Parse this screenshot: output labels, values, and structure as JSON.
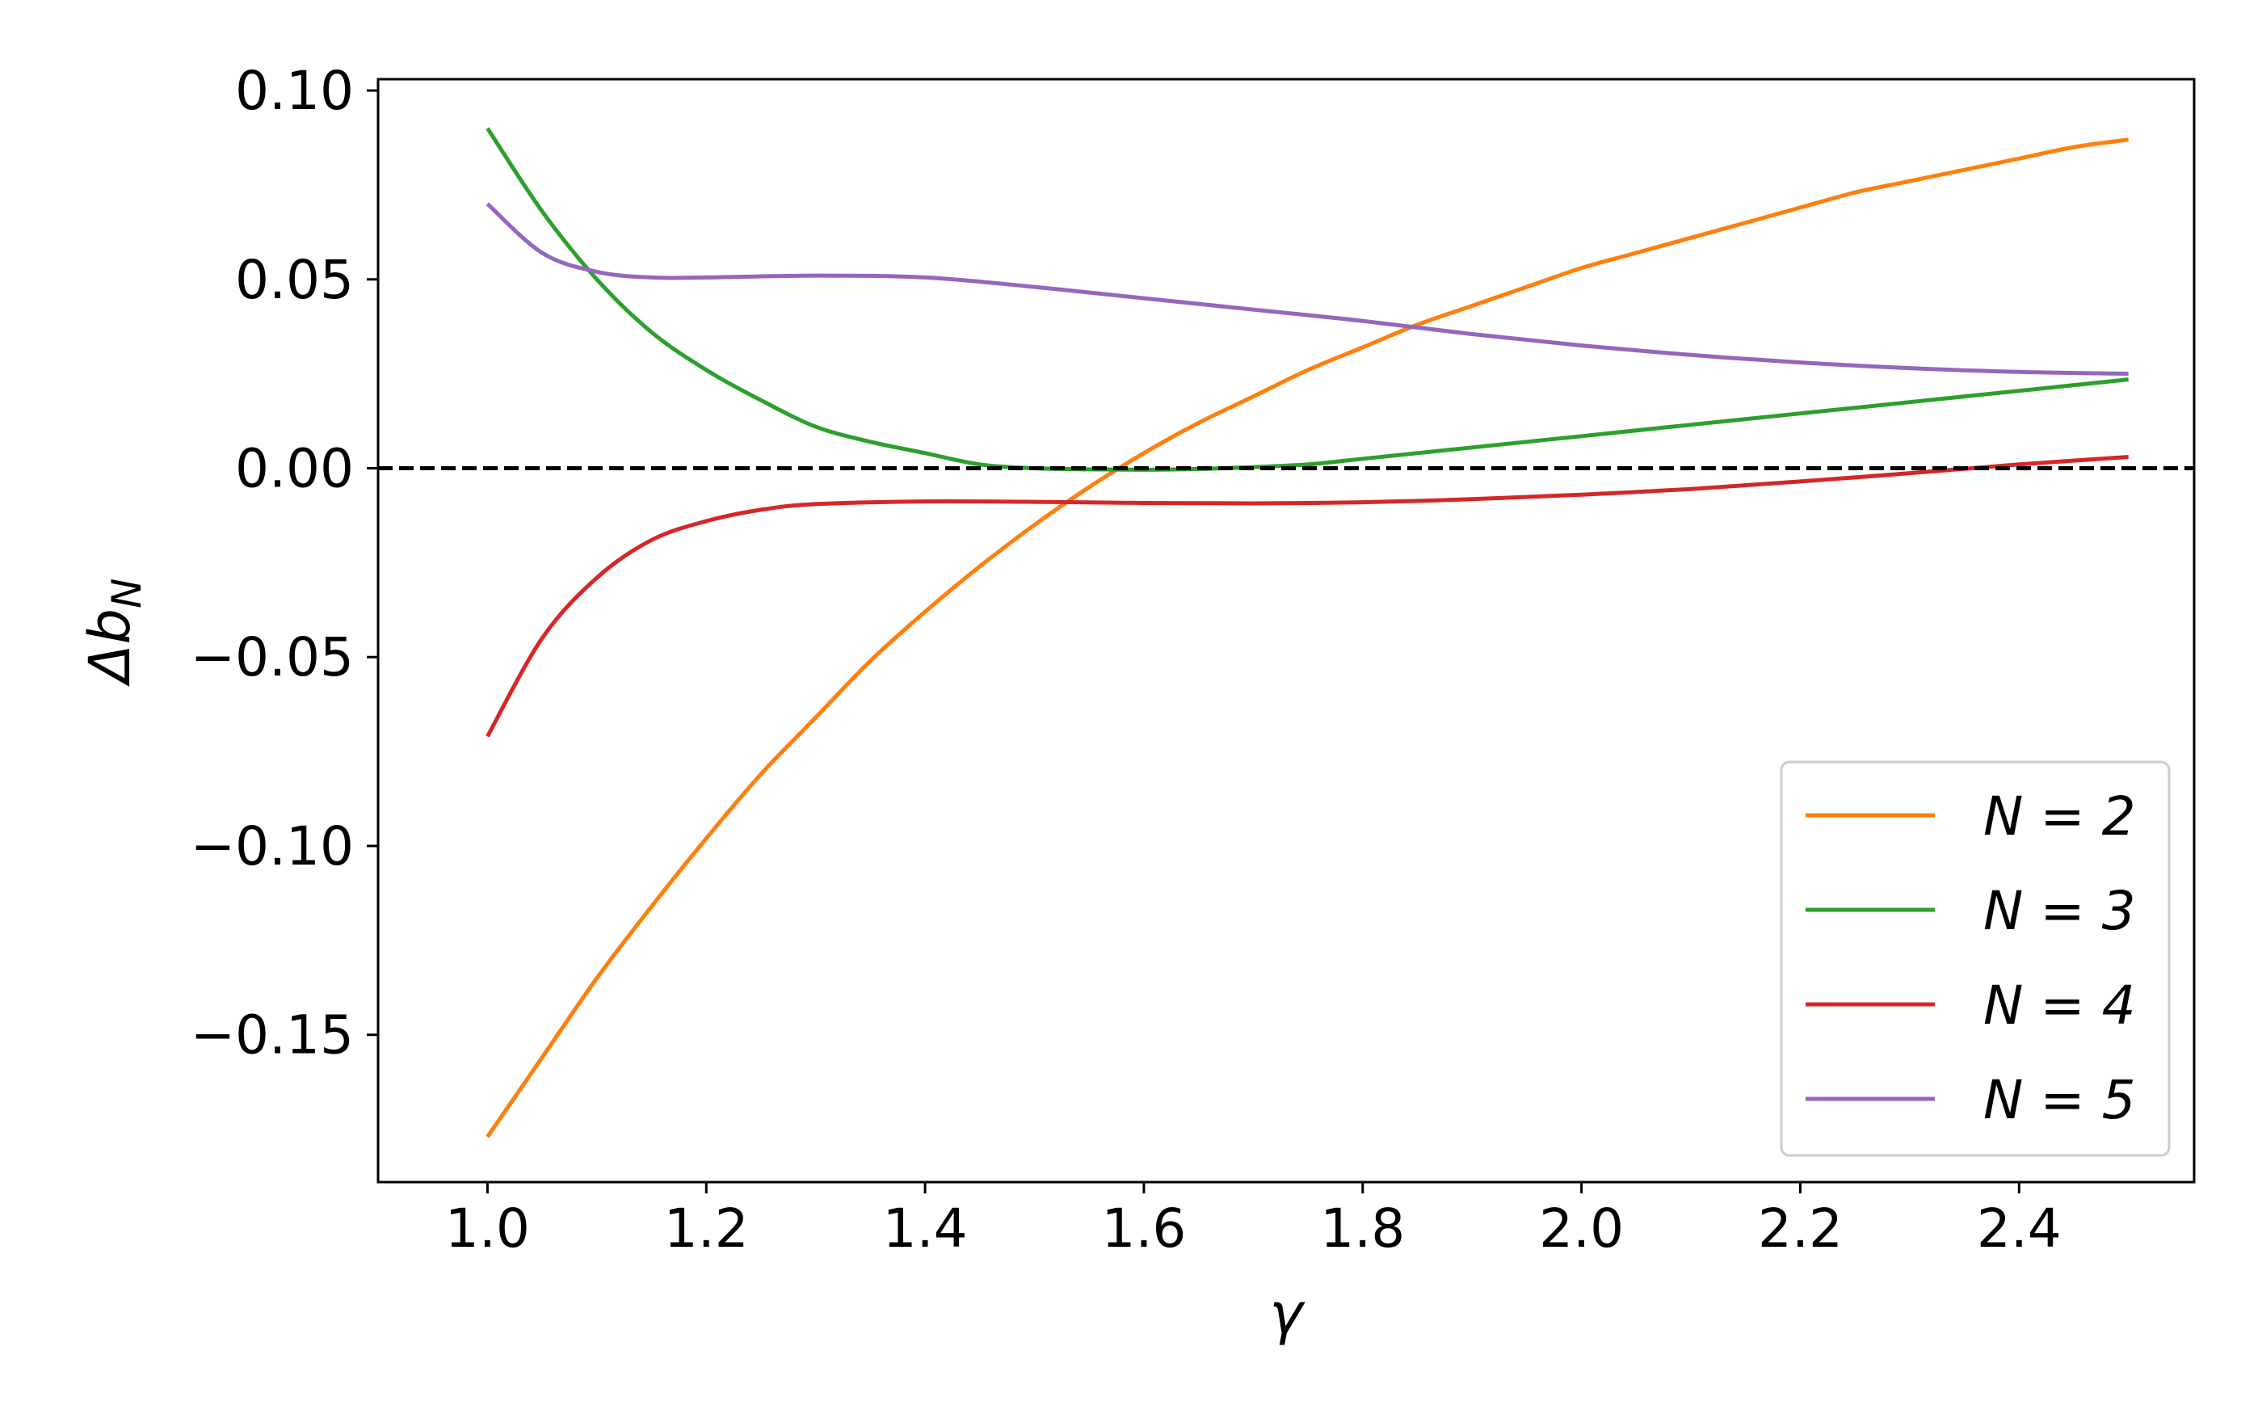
{
  "chart_data": {
    "type": "line",
    "xlabel": "γ",
    "ylabel": "Δb_N",
    "ylabel_main": "Δb",
    "ylabel_sub": "N",
    "xlim": [
      0.9,
      2.56
    ],
    "ylim": [
      -0.189,
      0.103
    ],
    "x_ticks": [
      1.0,
      1.2,
      1.4,
      1.6,
      1.8,
      2.0,
      2.2,
      2.4
    ],
    "x_tick_labels": [
      "1.0",
      "1.2",
      "1.4",
      "1.6",
      "1.8",
      "2.0",
      "2.2",
      "2.4"
    ],
    "y_ticks": [
      0.1,
      0.05,
      0.0,
      -0.05,
      -0.1,
      -0.15
    ],
    "y_tick_labels": [
      "0.10",
      "0.05",
      "0.00",
      "−0.05",
      "−0.10",
      "−0.15"
    ],
    "reference_line": {
      "y": 0.0,
      "style": "dashed",
      "color": "#000000"
    },
    "legend_position": "lower-right",
    "grid": false,
    "series": [
      {
        "name": "N = 2",
        "legend_label": "N = 2",
        "color": "#ff7f0e",
        "points": [
          [
            1.0,
            -0.177
          ],
          [
            1.05,
            -0.156
          ],
          [
            1.1,
            -0.135
          ],
          [
            1.15,
            -0.116
          ],
          [
            1.2,
            -0.098
          ],
          [
            1.25,
            -0.081
          ],
          [
            1.3,
            -0.066
          ],
          [
            1.35,
            -0.051
          ],
          [
            1.4,
            -0.038
          ],
          [
            1.45,
            -0.026
          ],
          [
            1.5,
            -0.015
          ],
          [
            1.55,
            -0.005
          ],
          [
            1.6,
            0.004
          ],
          [
            1.65,
            0.012
          ],
          [
            1.7,
            0.019
          ],
          [
            1.75,
            0.026
          ],
          [
            1.8,
            0.032
          ],
          [
            1.85,
            0.038
          ],
          [
            1.9,
            0.043
          ],
          [
            1.95,
            0.048
          ],
          [
            2.0,
            0.053
          ],
          [
            2.05,
            0.057
          ],
          [
            2.1,
            0.061
          ],
          [
            2.15,
            0.065
          ],
          [
            2.2,
            0.069
          ],
          [
            2.25,
            0.073
          ],
          [
            2.3,
            0.076
          ],
          [
            2.35,
            0.079
          ],
          [
            2.4,
            0.082
          ],
          [
            2.45,
            0.085
          ],
          [
            2.5,
            0.087
          ]
        ]
      },
      {
        "name": "N = 3",
        "legend_label": "N = 3",
        "color": "#2ca02c",
        "points": [
          [
            1.0,
            0.09
          ],
          [
            1.05,
            0.068
          ],
          [
            1.1,
            0.05
          ],
          [
            1.15,
            0.036
          ],
          [
            1.2,
            0.026
          ],
          [
            1.25,
            0.018
          ],
          [
            1.3,
            0.011
          ],
          [
            1.35,
            0.007
          ],
          [
            1.4,
            0.004
          ],
          [
            1.45,
            0.001
          ],
          [
            1.5,
            0.0
          ],
          [
            1.55,
            -0.0003
          ],
          [
            1.6,
            -0.0004
          ],
          [
            1.65,
            -0.0002
          ],
          [
            1.7,
            0.0003
          ],
          [
            1.75,
            0.001
          ],
          [
            1.8,
            0.0025
          ],
          [
            1.85,
            0.004
          ],
          [
            1.9,
            0.0055
          ],
          [
            1.95,
            0.007
          ],
          [
            2.0,
            0.0085
          ],
          [
            2.1,
            0.0115
          ],
          [
            2.2,
            0.0145
          ],
          [
            2.3,
            0.0175
          ],
          [
            2.4,
            0.0205
          ],
          [
            2.5,
            0.0235
          ]
        ]
      },
      {
        "name": "N = 4",
        "legend_label": "N = 4",
        "color": "#d62728",
        "points": [
          [
            1.0,
            -0.071
          ],
          [
            1.05,
            -0.045
          ],
          [
            1.1,
            -0.029
          ],
          [
            1.15,
            -0.019
          ],
          [
            1.2,
            -0.014
          ],
          [
            1.25,
            -0.011
          ],
          [
            1.3,
            -0.0095
          ],
          [
            1.4,
            -0.0088
          ],
          [
            1.5,
            -0.0089
          ],
          [
            1.6,
            -0.0092
          ],
          [
            1.7,
            -0.0093
          ],
          [
            1.8,
            -0.009
          ],
          [
            1.9,
            -0.0082
          ],
          [
            2.0,
            -0.007
          ],
          [
            2.1,
            -0.0055
          ],
          [
            2.2,
            -0.0035
          ],
          [
            2.3,
            -0.0013
          ],
          [
            2.4,
            0.001
          ],
          [
            2.5,
            0.003
          ]
        ]
      },
      {
        "name": "N = 5",
        "legend_label": "N = 5",
        "color": "#9467bd",
        "points": [
          [
            1.0,
            0.07
          ],
          [
            1.05,
            0.057
          ],
          [
            1.1,
            0.052
          ],
          [
            1.15,
            0.0505
          ],
          [
            1.2,
            0.0505
          ],
          [
            1.3,
            0.051
          ],
          [
            1.4,
            0.0505
          ],
          [
            1.5,
            0.048
          ],
          [
            1.6,
            0.045
          ],
          [
            1.7,
            0.042
          ],
          [
            1.8,
            0.039
          ],
          [
            1.9,
            0.0355
          ],
          [
            2.0,
            0.0325
          ],
          [
            2.1,
            0.03
          ],
          [
            2.2,
            0.028
          ],
          [
            2.3,
            0.0265
          ],
          [
            2.4,
            0.0255
          ],
          [
            2.5,
            0.025
          ]
        ]
      }
    ]
  }
}
